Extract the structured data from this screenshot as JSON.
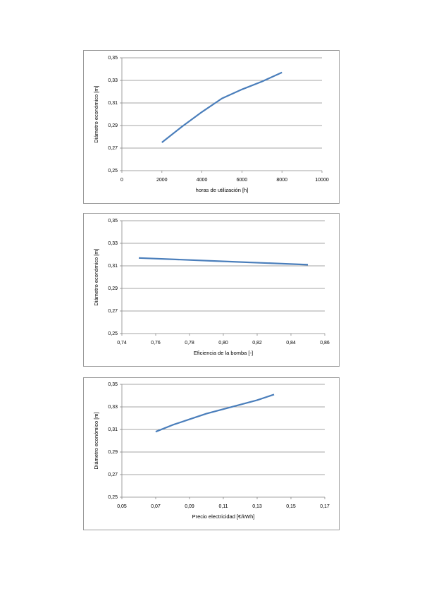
{
  "chart_data": [
    {
      "type": "line",
      "x_label": "horas de utilización [h]",
      "y_label": "Diámetro económico [m]",
      "x": [
        2000,
        3000,
        4000,
        5000,
        6000,
        7000,
        8000
      ],
      "series": [
        {
          "color": "#4a7ebb",
          "values": [
            0.275,
            0.289,
            0.302,
            0.314,
            0.322,
            0.329,
            0.337
          ]
        }
      ],
      "xlim": [
        0,
        10000
      ],
      "xticks": [
        0,
        2000,
        4000,
        6000,
        8000,
        10000
      ],
      "ylim": [
        0.25,
        0.35
      ],
      "yticks": [
        {
          "value": 0.25,
          "label": "0,25"
        },
        {
          "value": 0.27,
          "label": "0,27"
        },
        {
          "value": 0.29,
          "label": "0,29"
        },
        {
          "value": 0.31,
          "label": "0,31"
        },
        {
          "value": 0.33,
          "label": "0,33"
        },
        {
          "value": 0.35,
          "label": "0,35"
        }
      ],
      "grid": true
    },
    {
      "type": "line",
      "x_label": "Eficiencia de la bomba [-]",
      "y_label": "Diámetro económico [m]",
      "x": [
        0.75,
        0.8,
        0.85
      ],
      "series": [
        {
          "color": "#4a7ebb",
          "values": [
            0.317,
            0.314,
            0.311
          ]
        }
      ],
      "xlim": [
        0.74,
        0.86
      ],
      "xticks": [
        {
          "value": 0.74,
          "label": "0,74"
        },
        {
          "value": 0.76,
          "label": "0,76"
        },
        {
          "value": 0.78,
          "label": "0,78"
        },
        {
          "value": 0.8,
          "label": "0,80"
        },
        {
          "value": 0.82,
          "label": "0,82"
        },
        {
          "value": 0.84,
          "label": "0,84"
        },
        {
          "value": 0.86,
          "label": "0,86"
        }
      ],
      "ylim": [
        0.25,
        0.35
      ],
      "yticks": [
        {
          "value": 0.25,
          "label": "0,25"
        },
        {
          "value": 0.27,
          "label": "0,27"
        },
        {
          "value": 0.29,
          "label": "0,29"
        },
        {
          "value": 0.31,
          "label": "0,31"
        },
        {
          "value": 0.33,
          "label": "0,33"
        },
        {
          "value": 0.35,
          "label": "0,35"
        }
      ],
      "grid": true
    },
    {
      "type": "line",
      "x_label": "Precio electricidad [€/kWh]",
      "y_label": "Diámetro económico [m]",
      "x": [
        0.07,
        0.08,
        0.09,
        0.1,
        0.11,
        0.12,
        0.13,
        0.14
      ],
      "series": [
        {
          "color": "#4a7ebb",
          "values": [
            0.308,
            0.314,
            0.319,
            0.324,
            0.328,
            0.332,
            0.336,
            0.341
          ]
        }
      ],
      "xlim": [
        0.05,
        0.17
      ],
      "xticks": [
        {
          "value": 0.05,
          "label": "0,05"
        },
        {
          "value": 0.07,
          "label": "0,07"
        },
        {
          "value": 0.09,
          "label": "0,09"
        },
        {
          "value": 0.11,
          "label": "0,11"
        },
        {
          "value": 0.13,
          "label": "0,13"
        },
        {
          "value": 0.15,
          "label": "0,15"
        },
        {
          "value": 0.17,
          "label": "0,17"
        }
      ],
      "ylim": [
        0.25,
        0.35
      ],
      "yticks": [
        {
          "value": 0.25,
          "label": "0,25"
        },
        {
          "value": 0.27,
          "label": "0,27"
        },
        {
          "value": 0.29,
          "label": "0,29"
        },
        {
          "value": 0.31,
          "label": "0,31"
        },
        {
          "value": 0.33,
          "label": "0,33"
        },
        {
          "value": 0.35,
          "label": "0,35"
        }
      ],
      "grid": true
    }
  ]
}
